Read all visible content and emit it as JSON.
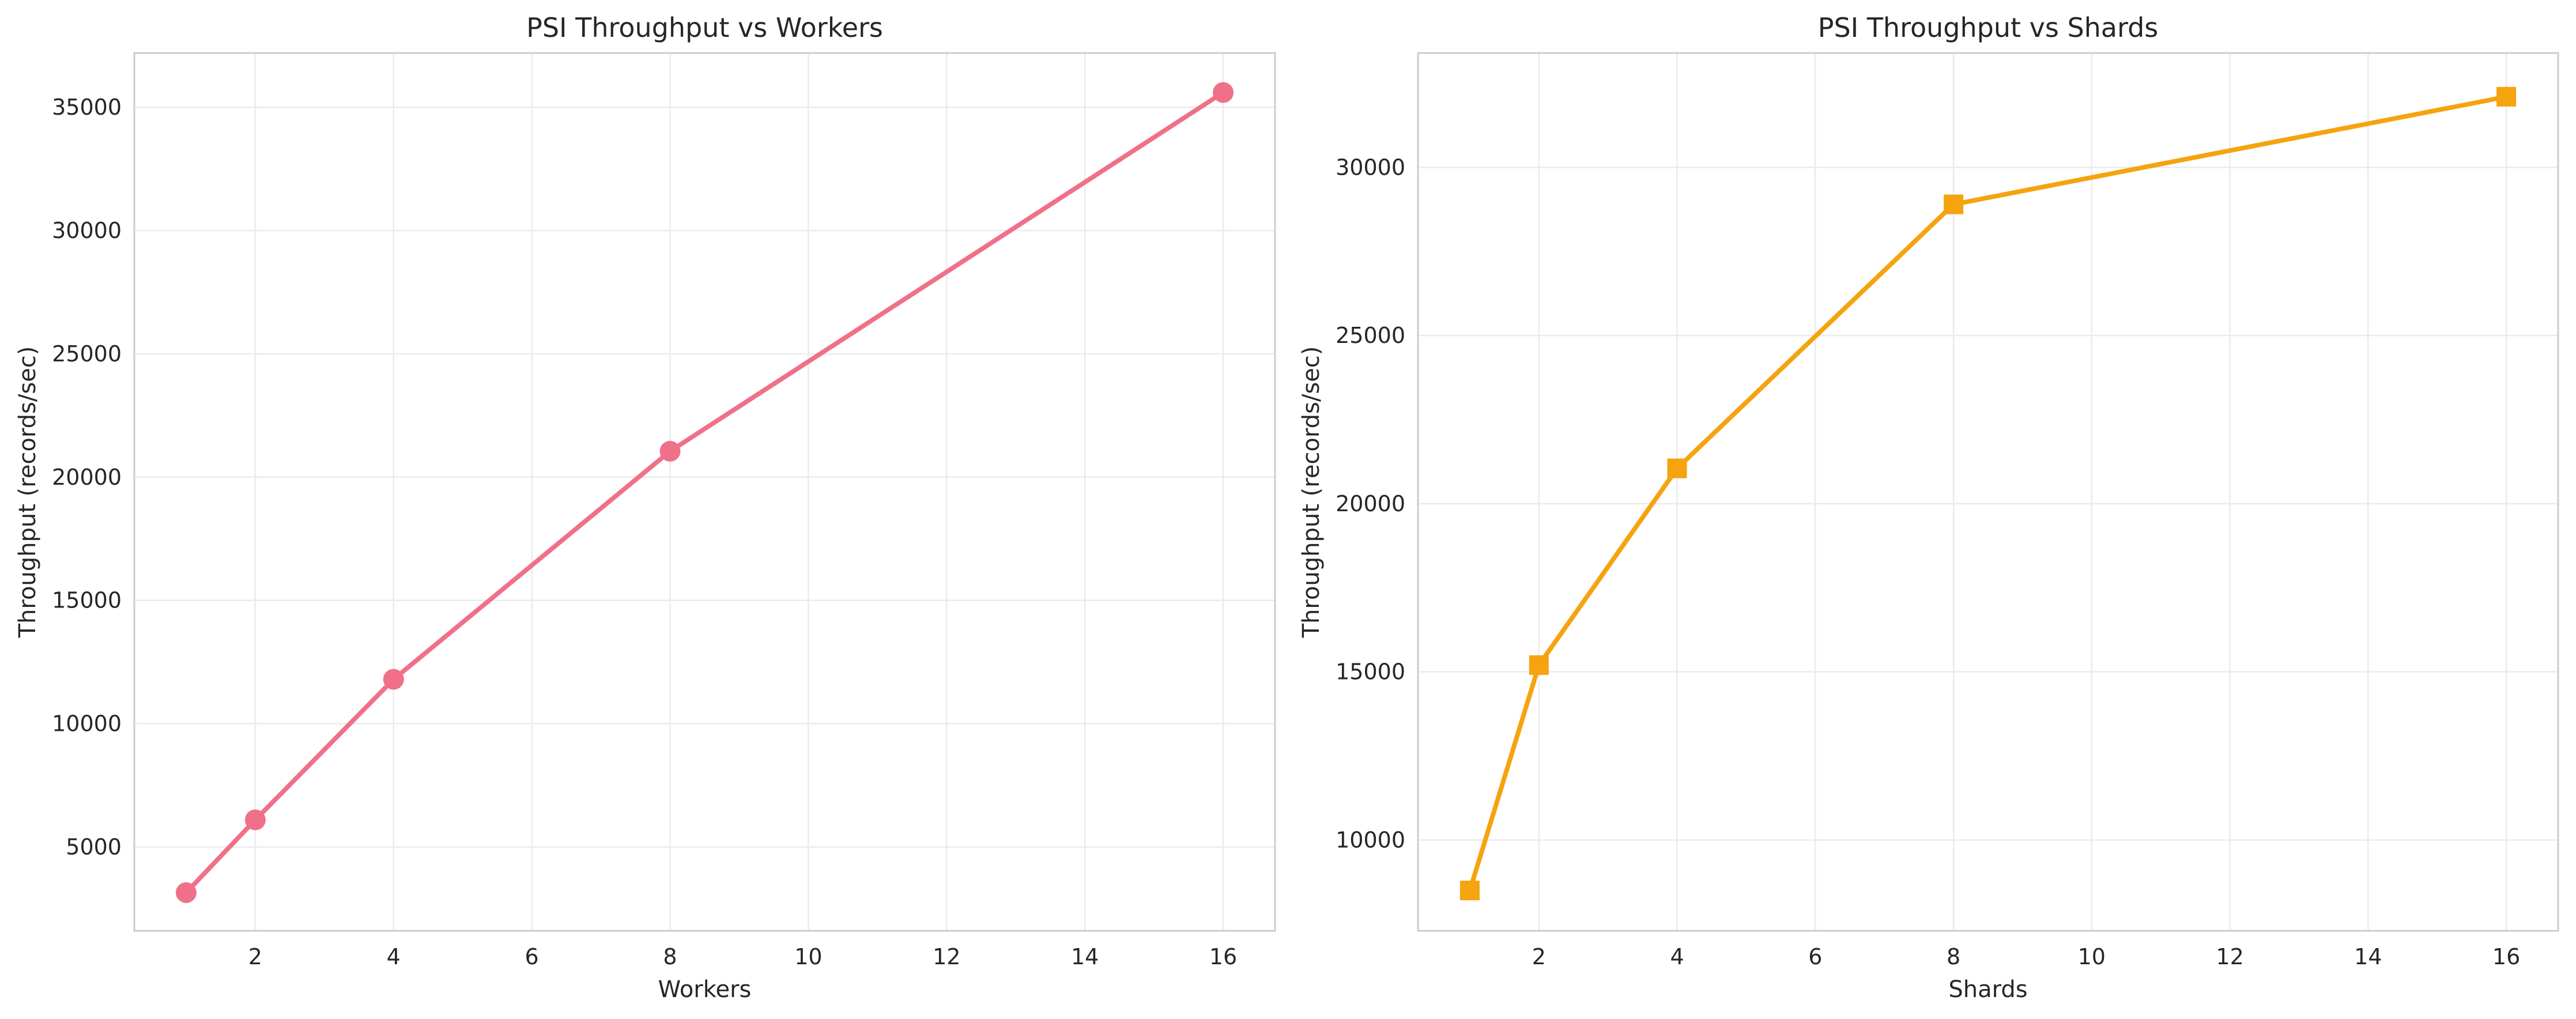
{
  "chart_data": [
    {
      "type": "line",
      "title": "PSI Throughput vs Workers",
      "xlabel": "Workers",
      "ylabel": "Throughput (records/sec)",
      "xlim": [
        0.25,
        16.75
      ],
      "ylim": [
        1600,
        37200
      ],
      "xticks": [
        2,
        4,
        6,
        8,
        10,
        12,
        14,
        16
      ],
      "yticks": [
        5000,
        10000,
        15000,
        20000,
        25000,
        30000,
        35000
      ],
      "grid": true,
      "series": [
        {
          "marker": "circle",
          "color": "#f0708a",
          "x": [
            1,
            2,
            4,
            8,
            16
          ],
          "y": [
            3150,
            6100,
            11800,
            21050,
            35600
          ]
        }
      ]
    },
    {
      "type": "line",
      "title": "PSI Throughput vs Shards",
      "xlabel": "Shards",
      "ylabel": "Throughput (records/sec)",
      "xlim": [
        0.25,
        16.75
      ],
      "ylim": [
        7300,
        33400
      ],
      "xticks": [
        2,
        4,
        6,
        8,
        10,
        12,
        14,
        16
      ],
      "yticks": [
        10000,
        15000,
        20000,
        25000,
        30000
      ],
      "grid": true,
      "series": [
        {
          "marker": "square",
          "color": "#f5a30f",
          "x": [
            1,
            2,
            4,
            8,
            16
          ],
          "y": [
            8500,
            15200,
            21050,
            28900,
            32100
          ]
        }
      ]
    }
  ]
}
